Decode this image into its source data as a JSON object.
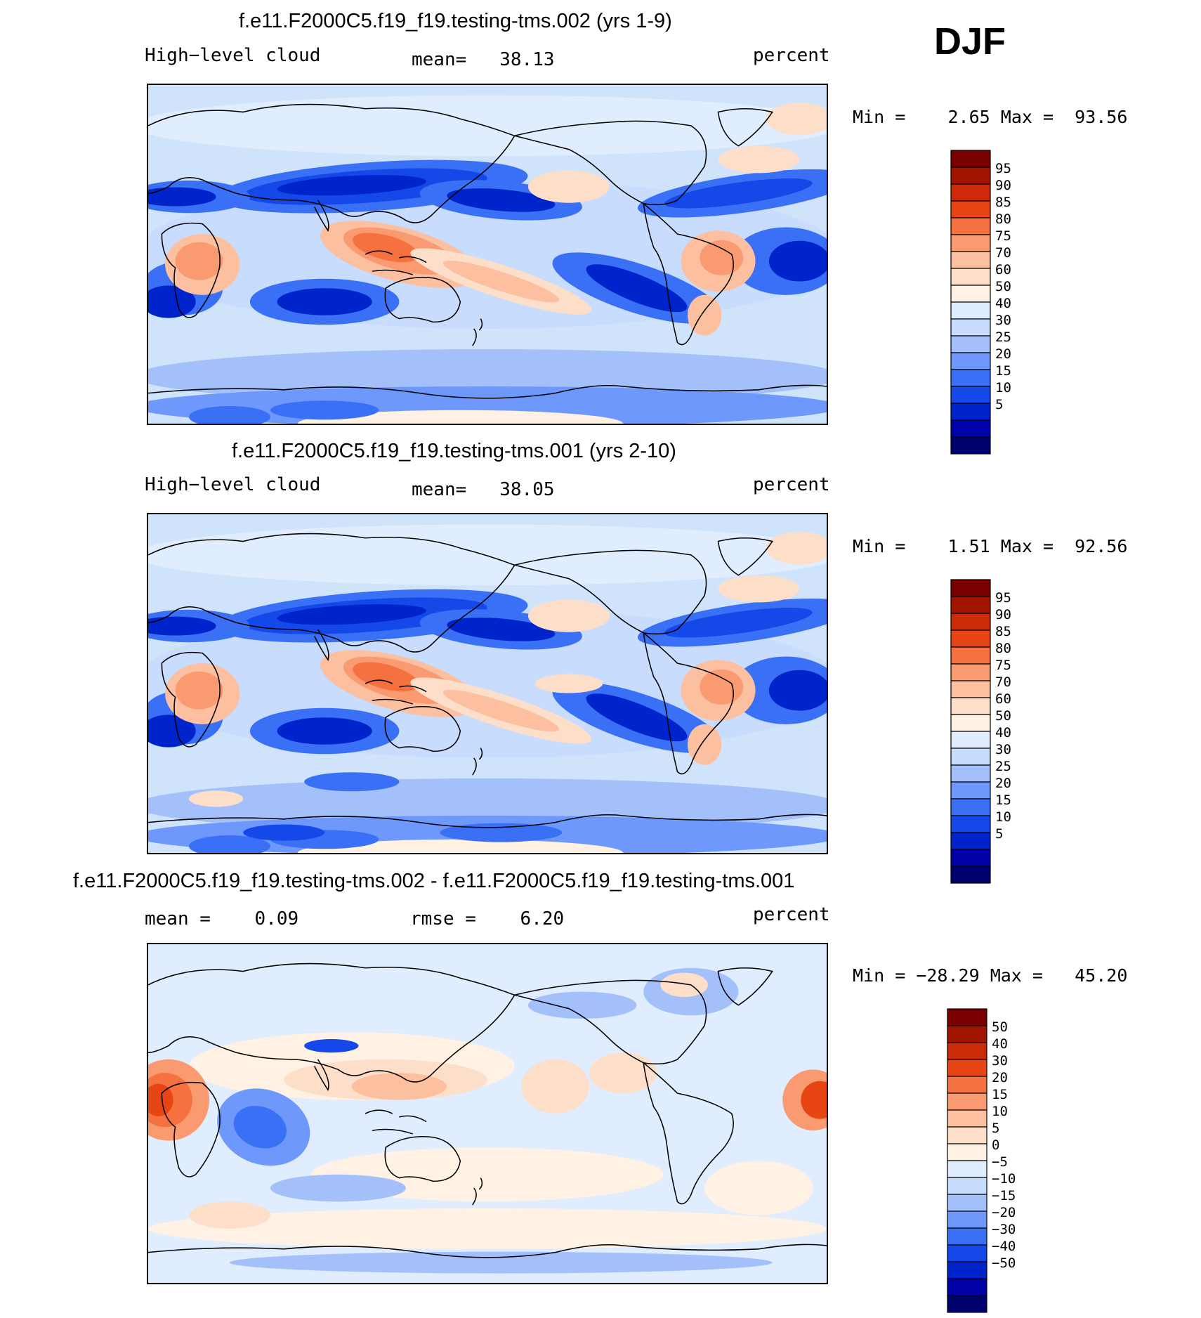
{
  "season": "DJF",
  "colors": {
    "abs_scale": [
      "#00006e",
      "#0000a8",
      "#0024cc",
      "#1448e8",
      "#3a70f5",
      "#6e98fb",
      "#a4c0fb",
      "#c8dcfd",
      "#e0edfe",
      "#fff1e4",
      "#fddfc9",
      "#fcc0a0",
      "#f99a70",
      "#f5713f",
      "#e84515",
      "#cc2a08",
      "#a01400",
      "#7a0000"
    ],
    "diff_scale": [
      "#00006e",
      "#0000a8",
      "#0024cc",
      "#1448e8",
      "#3a70f5",
      "#6e98fb",
      "#a4c0fb",
      "#c8dcfd",
      "#e0edfe",
      "#fff1e4",
      "#fddfc9",
      "#fcc0a0",
      "#f99a70",
      "#f5713f",
      "#e84515",
      "#cc2a08",
      "#a01400",
      "#7a0000"
    ]
  },
  "chart_data": [
    {
      "type": "heatmap",
      "title": "f.e11.F2000C5.f19_f19.testing-tms.002 (yrs 1-9)",
      "variable": "High−level cloud",
      "units": "percent",
      "mean_label": "mean=",
      "mean_value": "38.13",
      "min_label": "Min =",
      "min_value": "2.65",
      "max_label": "Max =",
      "max_value": "93.56",
      "levels": [
        "95",
        "90",
        "85",
        "80",
        "75",
        "70",
        "60",
        "50",
        "40",
        "30",
        "25",
        "20",
        "15",
        "10",
        "5"
      ]
    },
    {
      "type": "heatmap",
      "title": "f.e11.F2000C5.f19_f19.testing-tms.001 (yrs 2-10)",
      "variable": "High−level cloud",
      "units": "percent",
      "mean_label": "mean=",
      "mean_value": "38.05",
      "min_label": "Min =",
      "min_value": "1.51",
      "max_label": "Max =",
      "max_value": "92.56",
      "levels": [
        "95",
        "90",
        "85",
        "80",
        "75",
        "70",
        "60",
        "50",
        "40",
        "30",
        "25",
        "20",
        "15",
        "10",
        "5"
      ]
    },
    {
      "type": "heatmap",
      "title": "f.e11.F2000C5.f19_f19.testing-tms.002 - f.e11.F2000C5.f19_f19.testing-tms.001",
      "units": "percent",
      "mean_label": "mean =",
      "mean_value": "0.09",
      "rmse_label": "rmse =",
      "rmse_value": "6.20",
      "min_label": "Min =",
      "min_value": "−28.29",
      "max_label": "Max =",
      "max_value": "45.20",
      "levels": [
        "50",
        "40",
        "30",
        "20",
        "15",
        "10",
        "5",
        "0",
        "−5",
        "−10",
        "−15",
        "−20",
        "−30",
        "−40",
        "−50"
      ]
    }
  ]
}
